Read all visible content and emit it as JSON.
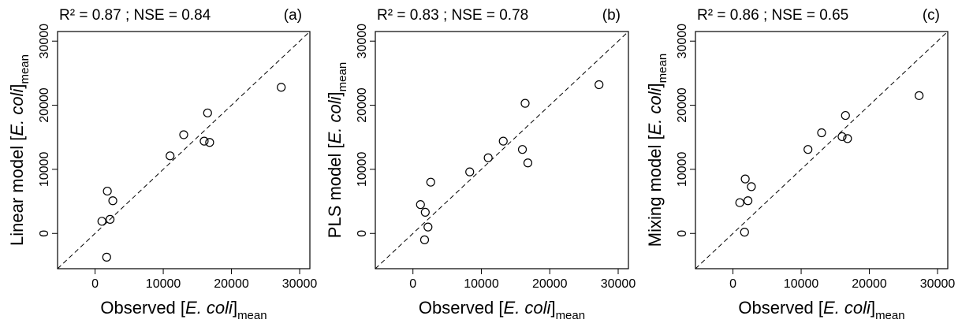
{
  "chart_data": [
    {
      "type": "scatter",
      "title": "R² = 0.87 ; NSE = 0.84",
      "panel_label": "(a)",
      "xlabel": {
        "prefix": "Observed [",
        "italic": "E. coli",
        "suffix": "]",
        "sub": "mean"
      },
      "ylabel": {
        "prefix": "Linear model [",
        "italic": "E. coli",
        "suffix": "]",
        "sub": "mean"
      },
      "xlim": [
        -5500,
        31500
      ],
      "ylim": [
        -5500,
        31500
      ],
      "xticks": [
        0,
        10000,
        20000,
        30000
      ],
      "yticks": [
        0,
        10000,
        20000,
        30000
      ],
      "xtick_labels": [
        "0",
        "10000",
        "20000",
        "30000"
      ],
      "ytick_labels": [
        "0",
        "10000",
        "20000",
        "30000"
      ],
      "reference_line": "1:1",
      "points": [
        {
          "x": 1000,
          "y": 1900
        },
        {
          "x": 1700,
          "y": -3700
        },
        {
          "x": 1800,
          "y": 6600
        },
        {
          "x": 2200,
          "y": 2200
        },
        {
          "x": 2600,
          "y": 5100
        },
        {
          "x": 11000,
          "y": 12100
        },
        {
          "x": 13000,
          "y": 15400
        },
        {
          "x": 16000,
          "y": 14400
        },
        {
          "x": 16500,
          "y": 18800
        },
        {
          "x": 16800,
          "y": 14200
        },
        {
          "x": 27300,
          "y": 22800
        }
      ]
    },
    {
      "type": "scatter",
      "title": "R² = 0.83 ; NSE = 0.78",
      "panel_label": "(b)",
      "xlabel": {
        "prefix": "Observed [",
        "italic": "E. coli",
        "suffix": "]",
        "sub": "mean"
      },
      "ylabel": {
        "prefix": "PLS model [",
        "italic": "E. coli",
        "suffix": "]",
        "sub": "mean"
      },
      "xlim": [
        -5500,
        31500
      ],
      "ylim": [
        -5500,
        31500
      ],
      "xticks": [
        0,
        10000,
        20000,
        30000
      ],
      "yticks": [
        0,
        10000,
        20000,
        30000
      ],
      "xtick_labels": [
        "0",
        "10000",
        "20000",
        "30000"
      ],
      "ytick_labels": [
        "0",
        "10000",
        "20000",
        "30000"
      ],
      "reference_line": "1:1",
      "points": [
        {
          "x": 1100,
          "y": 4500
        },
        {
          "x": 1700,
          "y": -1000
        },
        {
          "x": 1800,
          "y": 3300
        },
        {
          "x": 2200,
          "y": 1000
        },
        {
          "x": 2600,
          "y": 8000
        },
        {
          "x": 8300,
          "y": 9600
        },
        {
          "x": 11000,
          "y": 11800
        },
        {
          "x": 13200,
          "y": 14400
        },
        {
          "x": 16000,
          "y": 13100
        },
        {
          "x": 16400,
          "y": 20300
        },
        {
          "x": 16800,
          "y": 11000
        },
        {
          "x": 27200,
          "y": 23200
        }
      ]
    },
    {
      "type": "scatter",
      "title": "R² = 0.86 ; NSE = 0.65",
      "panel_label": "(c)",
      "xlabel": {
        "prefix": "Observed [",
        "italic": "E. coli",
        "suffix": "]",
        "sub": "mean"
      },
      "ylabel": {
        "prefix": "Mixing model [",
        "italic": "E. coli",
        "suffix": "]",
        "sub": "mean"
      },
      "xlim": [
        -5500,
        31500
      ],
      "ylim": [
        -5500,
        31500
      ],
      "xticks": [
        0,
        10000,
        20000,
        30000
      ],
      "yticks": [
        0,
        10000,
        20000,
        30000
      ],
      "xtick_labels": [
        "0",
        "10000",
        "20000",
        "30000"
      ],
      "ytick_labels": [
        "0",
        "10000",
        "20000",
        "30000"
      ],
      "reference_line": "1:1",
      "points": [
        {
          "x": 1000,
          "y": 4800
        },
        {
          "x": 1700,
          "y": 200
        },
        {
          "x": 1800,
          "y": 8500
        },
        {
          "x": 2200,
          "y": 5100
        },
        {
          "x": 2700,
          "y": 7300
        },
        {
          "x": 11000,
          "y": 13100
        },
        {
          "x": 13000,
          "y": 15700
        },
        {
          "x": 16000,
          "y": 15100
        },
        {
          "x": 16500,
          "y": 18400
        },
        {
          "x": 16800,
          "y": 14800
        },
        {
          "x": 27300,
          "y": 21500
        }
      ]
    }
  ]
}
